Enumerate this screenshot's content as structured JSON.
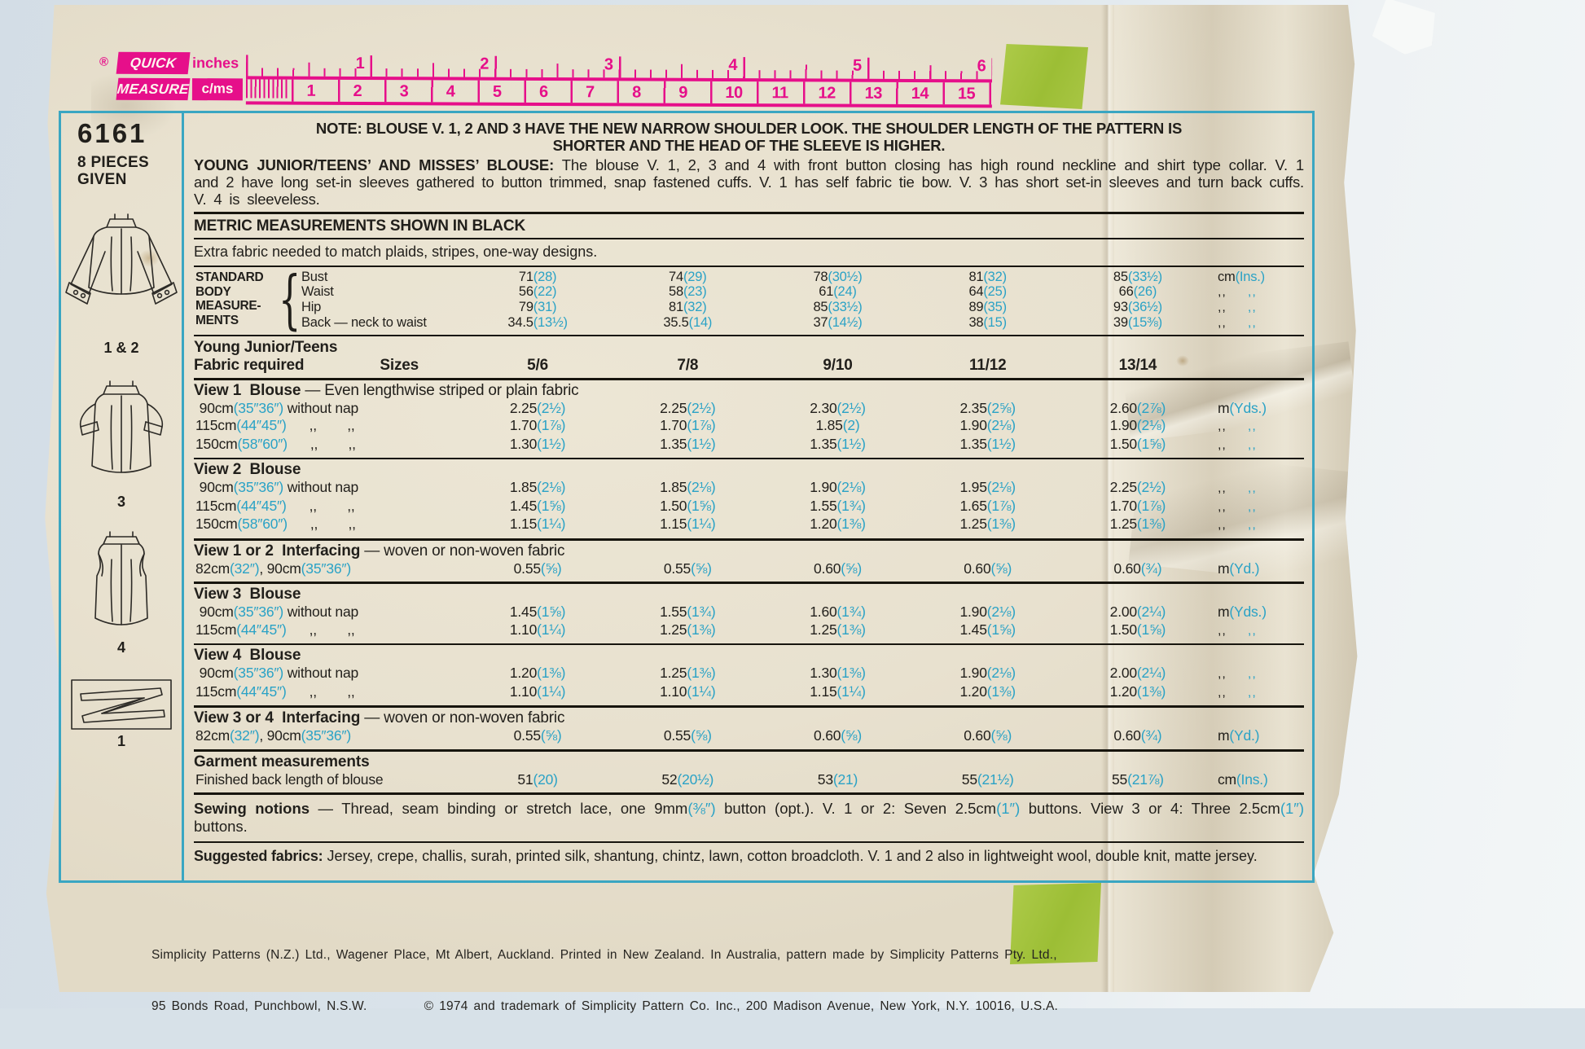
{
  "colors": {
    "accent_blue": "#2aa2c6",
    "ruler_pink": "#e60f8a",
    "tape_green": "#9cbe35",
    "teal_border": "#3aa6c2",
    "paper": "#e9e2d0"
  },
  "ruler": {
    "registered": "®",
    "brand_line1": "QUICK",
    "brand_line2": "MEASURE",
    "unit_top": "inches",
    "unit_bottom": "c/ms",
    "inch_numbers": [
      "1",
      "2",
      "3",
      "4",
      "5",
      "6"
    ],
    "cm_numbers": [
      "1",
      "2",
      "3",
      "4",
      "5",
      "6",
      "7",
      "8",
      "9",
      "10",
      "11",
      "12",
      "13",
      "14",
      "15"
    ]
  },
  "sidebar": {
    "pattern_number": "6161",
    "pieces_line1": "8 PIECES",
    "pieces_line2": "GIVEN",
    "view_labels": [
      "1 & 2",
      "3",
      "4",
      "1"
    ]
  },
  "note": {
    "line1": "NOTE: BLOUSE V. 1, 2 AND 3 HAVE THE NEW NARROW SHOULDER LOOK. THE SHOULDER LENGTH OF THE PATTERN IS",
    "line2": "SHORTER AND THE HEAD OF THE SLEEVE IS HIGHER."
  },
  "description": {
    "title": "YOUNG JUNIOR/TEENS’ AND MISSES’ BLOUSE:",
    "body": " The blouse V. 1, 2, 3 and 4 with front button closing has high round neckline and shirt type collar. V. 1 and 2 have long set-in sleeves gathered to button trimmed, snap fastened cuffs. V. 1 has self fabric tie bow. V. 3 has short set-in sleeves and turn back cuffs. V. 4 is sleeveless."
  },
  "metric_heading": "METRIC MEASUREMENTS SHOWN IN BLACK",
  "extra_fabric": "Extra fabric needed to match plaids, stripes, one-way designs.",
  "body_measurements": {
    "label_lines": [
      "STANDARD",
      "BODY",
      "MEASURE-",
      "MENTS"
    ],
    "brace": "{",
    "rows": [
      {
        "name": "Bust",
        "values": [
          "71(28)",
          "74(29)",
          "78(30½)",
          "81(32)",
          "85(33½)"
        ],
        "unit": "cm(Ins.)"
      },
      {
        "name": "Waist",
        "values": [
          "56(22)",
          "58(23)",
          "61(24)",
          "64(25)",
          "66(26)"
        ],
        "unit": "ditto"
      },
      {
        "name": "Hip",
        "values": [
          "79(31)",
          "81(32)",
          "85(33½)",
          "89(35)",
          "93(36½)"
        ],
        "unit": "ditto"
      },
      {
        "name": "Back — neck to waist",
        "values": [
          "34.5(13½)",
          "35.5(14)",
          "37(14½)",
          "38(15)",
          "39(15⅜)"
        ],
        "unit": "ditto"
      }
    ]
  },
  "size_header": {
    "group": "Young Junior/Teens",
    "fabric_required": "Fabric required",
    "sizes_label": "Sizes",
    "sizes": [
      "5/6",
      "7/8",
      "9/10",
      "11/12",
      "13/14"
    ]
  },
  "fabric_sections": [
    {
      "heading": "View 1  Blouse",
      "heading_rest": " — Even lengthwise striped or plain fabric",
      "rule": "r2",
      "rows": [
        {
          "label": " 90cm(35″36″) without nap",
          "values": [
            "2.25(2½)",
            "2.25(2½)",
            "2.30(2½)",
            "2.35(2⅝)",
            "2.60(2⅞)"
          ],
          "unit": "m(Yds.)"
        },
        {
          "label": "115cm(44″45″)      ,,        ,,",
          "values": [
            "1.70(1⅞)",
            "1.70(1⅞)",
            "1.85(2)",
            "1.90(2⅛)",
            "1.90(2⅛)"
          ],
          "unit": "ditto"
        },
        {
          "label": "150cm(58″60″)      ,,        ,,",
          "values": [
            "1.30(1½)",
            "1.35(1½)",
            "1.35(1½)",
            "1.35(1½)",
            "1.50(1⅝)"
          ],
          "unit": "ditto"
        }
      ]
    },
    {
      "heading": "View 2  Blouse",
      "heading_rest": "",
      "rule": "r3",
      "rows": [
        {
          "label": " 90cm(35″36″) without nap",
          "values": [
            "1.85(2⅛)",
            "1.85(2⅛)",
            "1.90(2⅛)",
            "1.95(2⅛)",
            "2.25(2½)"
          ],
          "unit": "ditto"
        },
        {
          "label": "115cm(44″45″)      ,,        ,,",
          "values": [
            "1.45(1⅝)",
            "1.50(1⅝)",
            "1.55(1¾)",
            "1.65(1⅞)",
            "1.70(1⅞)"
          ],
          "unit": "ditto"
        },
        {
          "label": "150cm(58″60″)      ,,        ,,",
          "values": [
            "1.15(1¼)",
            "1.15(1¼)",
            "1.20(1⅜)",
            "1.25(1⅜)",
            "1.25(1⅜)"
          ],
          "unit": "ditto"
        }
      ]
    },
    {
      "heading": "View 1 or 2  Interfacing",
      "heading_rest": " — woven or non-woven fabric",
      "rule": "r3",
      "rows": [
        {
          "label": "82cm(32″), 90cm(35″36″)",
          "values": [
            "0.55(⅝)",
            "0.55(⅝)",
            "0.60(⅝)",
            "0.60(⅝)",
            "0.60(¾)"
          ],
          "unit": "m(Yd.)"
        }
      ]
    },
    {
      "heading": "View 3  Blouse",
      "heading_rest": "",
      "rule": "r2",
      "rows": [
        {
          "label": " 90cm(35″36″) without nap",
          "values": [
            "1.45(1⅝)",
            "1.55(1¾)",
            "1.60(1¾)",
            "1.90(2⅛)",
            "2.00(2¼)"
          ],
          "unit": "m(Yds.)"
        },
        {
          "label": "115cm(44″45″)      ,,        ,,",
          "values": [
            "1.10(1¼)",
            "1.25(1⅜)",
            "1.25(1⅜)",
            "1.45(1⅝)",
            "1.50(1⅝)"
          ],
          "unit": "ditto"
        }
      ]
    },
    {
      "heading": "View 4  Blouse",
      "heading_rest": "",
      "rule": "r3",
      "rows": [
        {
          "label": " 90cm(35″36″) without nap",
          "values": [
            "1.20(1⅜)",
            "1.25(1⅜)",
            "1.30(1⅜)",
            "1.90(2⅛)",
            "2.00(2¼)"
          ],
          "unit": "ditto"
        },
        {
          "label": "115cm(44″45″)      ,,        ,,",
          "values": [
            "1.10(1¼)",
            "1.10(1¼)",
            "1.15(1¼)",
            "1.20(1⅜)",
            "1.20(1⅜)"
          ],
          "unit": "ditto"
        }
      ]
    },
    {
      "heading": "View 3 or 4  Interfacing",
      "heading_rest": " — woven or non-woven fabric",
      "rule": "r3",
      "rows": [
        {
          "label": "82cm(32″), 90cm(35″36″)",
          "values": [
            "0.55(⅝)",
            "0.55(⅝)",
            "0.60(⅝)",
            "0.60(⅝)",
            "0.60(¾)"
          ],
          "unit": "m(Yd.)"
        }
      ]
    },
    {
      "heading": "Garment measurements",
      "heading_rest": "",
      "rule": "r3",
      "rows": [
        {
          "label": "Finished back length of blouse",
          "values": [
            "51(20)",
            "52(20½)",
            "53(21)",
            "55(21½)",
            "55(21⅞)"
          ],
          "unit": "cm(Ins.)"
        }
      ]
    }
  ],
  "notions": {
    "title": "Sewing notions",
    "body": " — Thread, seam binding or stretch lace, one 9mm(⅜″) button (opt.). V. 1 or 2: Seven 2.5cm(1″) buttons. View 3 or 4: Three 2.5cm(1″) buttons."
  },
  "fabrics": {
    "title": "Suggested fabrics:",
    "body": " Jersey, crepe, challis, surah, printed silk, shantung, chintz, lawn, cotton broadcloth. V. 1 and 2 also in lightweight wool, double knit, matte jersey."
  },
  "footer": {
    "line1": "Simplicity Patterns (N.Z.) Ltd., Wagener Place, Mt Albert, Auckland. Printed in New Zealand. In Australia, pattern made by Simplicity Patterns Pty. Ltd.,",
    "line2": "95 Bonds Road, Punchbowl, N.S.W.          © 1974 and trademark of Simplicity Pattern Co. Inc., 200 Madison Avenue, New York, N.Y. 10016, U.S.A."
  }
}
